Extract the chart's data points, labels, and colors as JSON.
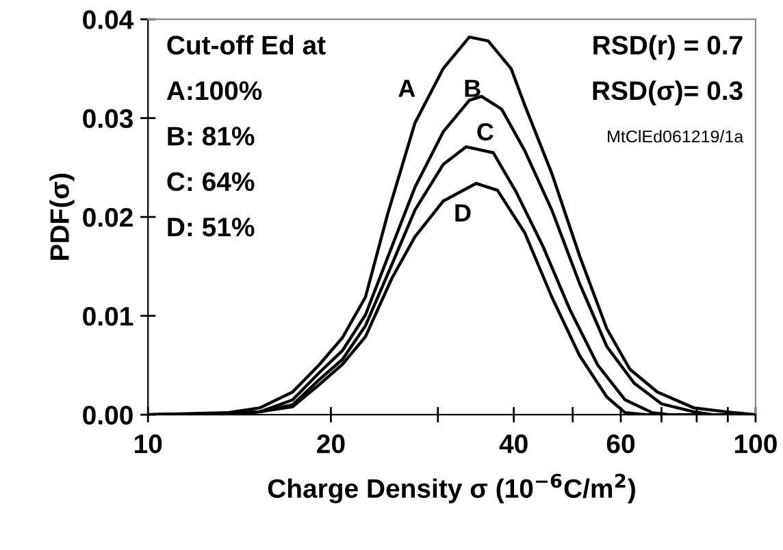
{
  "chart_data": {
    "type": "line",
    "xlabel": "Charge Density σ (10$^{−6}$C/m$^{2}$)",
    "ylabel": "PDF(σ)",
    "log": "x",
    "xlim": [
      10,
      100
    ],
    "ylim": [
      0,
      0.04
    ],
    "xticks": [
      10,
      20,
      {
        "value": 30,
        "label": null
      },
      40,
      {
        "value": 50,
        "label": null
      },
      60,
      {
        "value": 70,
        "label": null
      },
      {
        "value": 80,
        "label": null
      },
      {
        "value": 90,
        "label": null
      },
      100
    ],
    "yticks": [
      {
        "value": 0,
        "label": "0.00"
      },
      {
        "value": 0.01,
        "label": "0.01"
      },
      {
        "value": 0.02,
        "label": "0.02"
      },
      {
        "value": 0.03,
        "label": "0.03"
      },
      {
        "value": 0.04,
        "label": "0.04"
      }
    ],
    "grid": false,
    "marker": "none",
    "line_style": "solid",
    "series": [
      {
        "color": "#000000",
        "x": [
          10,
          13.5,
          15.3,
          17.3,
          19.1,
          20.9,
          22.8,
          24.8,
          27.5,
          30.6,
          33.8,
          36.3,
          39.6,
          41.7,
          46.2,
          51.3,
          56.9,
          62.1,
          68.9,
          79.1,
          89.2,
          100
        ],
        "values": [
          0,
          0.0002,
          0.0007,
          0.0023,
          0.005,
          0.0078,
          0.0119,
          0.0203,
          0.0295,
          0.035,
          0.0382,
          0.0378,
          0.035,
          0.0313,
          0.0244,
          0.0161,
          0.0087,
          0.0046,
          0.0023,
          0.0007,
          0.0003,
          0
        ]
      },
      {
        "color": "#000000",
        "x": [
          10,
          13.5,
          15.3,
          17.3,
          19.1,
          20.9,
          22.8,
          25.2,
          27.5,
          30.6,
          33.8,
          35.4,
          38.2,
          41.7,
          46.2,
          51.3,
          56.9,
          63.1,
          70,
          79.1,
          85,
          100
        ],
        "values": [
          0,
          0.0001,
          0.0003,
          0.0015,
          0.0042,
          0.0065,
          0.0101,
          0.017,
          0.023,
          0.0286,
          0.0318,
          0.0322,
          0.0309,
          0.0267,
          0.0207,
          0.0133,
          0.0069,
          0.0032,
          0.0011,
          0.0003,
          0,
          0
        ]
      },
      {
        "color": "#000000",
        "x": [
          10,
          13.5,
          15.3,
          17.3,
          19.1,
          20.9,
          22.8,
          25.2,
          27.5,
          30.6,
          33.4,
          37.0,
          40.3,
          44.7,
          49.5,
          55.0,
          61.0,
          67.6,
          72,
          100
        ],
        "values": [
          0,
          0.0001,
          0.0003,
          0.001,
          0.0035,
          0.0056,
          0.009,
          0.0152,
          0.0207,
          0.0253,
          0.0271,
          0.0265,
          0.0226,
          0.017,
          0.0106,
          0.005,
          0.0015,
          0.0002,
          0,
          0
        ]
      },
      {
        "color": "#000000",
        "x": [
          10,
          13.5,
          15.3,
          17.3,
          19.1,
          20.9,
          22.8,
          25.2,
          27.5,
          30.6,
          34.7,
          37.6,
          41.7,
          46.2,
          51.3,
          56.9,
          61.0,
          66,
          100
        ],
        "values": [
          0,
          0.0001,
          0.0003,
          0.0008,
          0.003,
          0.0051,
          0.0079,
          0.0138,
          0.018,
          0.0216,
          0.0234,
          0.0227,
          0.0184,
          0.0119,
          0.006,
          0.0018,
          0.0002,
          0,
          0
        ]
      }
    ],
    "annotations": [
      "Cut-off Ed at",
      "A:100%",
      "B: 81%",
      "C: 64%",
      "D: 51%",
      "RSD(r) = 0.7",
      "RSD(σ)= 0.3",
      "MtClEd061219/1a",
      "A",
      "B",
      "C",
      "D"
    ]
  }
}
